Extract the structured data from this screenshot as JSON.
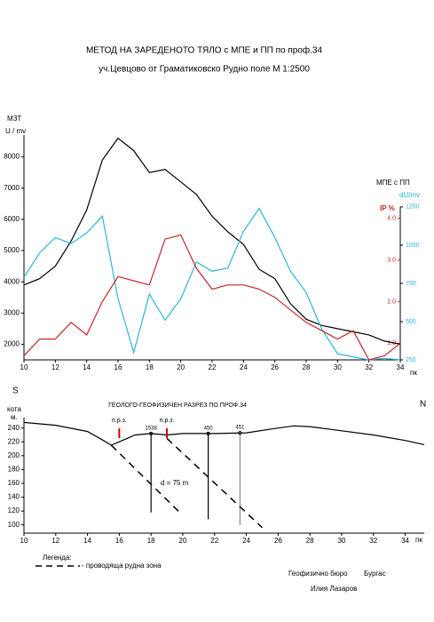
{
  "chart_data": [
    {
      "type": "line",
      "title": "МЕТОД НА ЗАРЕДЕНОТО ТЯЛО с МПЕ и ПП по проф.34",
      "subtitle": "уч.Цевцово от Граматиковско Рудно поле  М 1:2500",
      "y_label_top": "МЗТ",
      "y_label": "U / mv",
      "y2_group_label": "МПЕ с ПП",
      "y2_label": "dU/mv",
      "y3_label": "IP %",
      "x_label": "пк",
      "x": [
        10,
        11,
        12,
        13,
        14,
        15,
        16,
        17,
        18,
        19,
        20,
        21,
        22,
        23,
        24,
        25,
        26,
        27,
        28,
        29,
        30,
        31,
        32,
        33,
        34
      ],
      "xlim": [
        10,
        34
      ],
      "xticks": [
        10,
        12,
        14,
        16,
        18,
        20,
        22,
        24,
        26,
        28,
        30,
        32,
        34
      ],
      "ylim": [
        1500,
        8700
      ],
      "yticks": [
        2000,
        3000,
        4000,
        5000,
        6000,
        7000,
        8000
      ],
      "y2lim": [
        250,
        1720
      ],
      "y2ticks": [
        250,
        500,
        750,
        1000,
        1250
      ],
      "y3lim": [
        0.6,
        6
      ],
      "y3ticks": [
        {
          "value": 1,
          "label": "1.0"
        },
        {
          "value": 2,
          "label": "2.0"
        },
        {
          "value": 3,
          "label": "3.0"
        },
        {
          "value": 4,
          "label": "4.0"
        }
      ],
      "series": [
        {
          "color": "#000000",
          "values": [
            3900,
            4100,
            4500,
            5300,
            6300,
            7900,
            8600,
            8200,
            7500,
            7600,
            7200,
            6800,
            6100,
            5600,
            5200,
            4400,
            4100,
            3300,
            2800,
            2600,
            2500,
            2400,
            2300,
            2100,
            2000
          ]
        },
        {
          "color": "#29b6d6",
          "axis": "y2",
          "values": [
            790,
            950,
            1050,
            1010,
            1080,
            1190,
            650,
            300,
            680,
            510,
            650,
            890,
            830,
            850,
            1090,
            1240,
            1050,
            830,
            690,
            450,
            290,
            270,
            250,
            260,
            250
          ]
        },
        {
          "color": "#c0282a",
          "axis": "y3",
          "values": [
            0.7,
            1.1,
            1.1,
            1.5,
            1.2,
            2.0,
            2.6,
            2.5,
            2.4,
            3.5,
            3.6,
            2.8,
            2.3,
            2.4,
            2.4,
            2.3,
            2.1,
            1.8,
            1.5,
            1.3,
            1.1,
            1.3,
            0.6,
            0.7,
            1.0
          ]
        }
      ]
    },
    {
      "type": "line",
      "title": "ГЕОЛОГО-ГЕОФИЗИЧЕН РАЗРЕЗ  ПО ПРОФ.34",
      "left_label": "S",
      "right_label": "N",
      "y_label": "кота",
      "y_unit": "м.",
      "x_label": "пк",
      "xlim": [
        10,
        35.2
      ],
      "xticks": [
        10,
        12,
        14,
        16,
        18,
        20,
        22,
        24,
        26,
        28,
        30,
        32,
        34
      ],
      "ylim": [
        88,
        255
      ],
      "yticks": [
        100,
        120,
        140,
        160,
        180,
        200,
        220,
        240
      ],
      "series": [
        {
          "color": "#000000",
          "x": [
            10,
            12,
            14,
            15,
            15.5,
            16,
            17,
            18,
            19,
            20,
            22,
            24,
            26,
            27,
            28,
            30,
            32,
            34,
            35.2
          ],
          "values": [
            248,
            244,
            235,
            222,
            215,
            220,
            230,
            232,
            230,
            232,
            232,
            233,
            240,
            243,
            242,
            236,
            230,
            222,
            216
          ]
        }
      ],
      "markers": [
        {
          "label": "п.р.з.",
          "x": 16
        },
        {
          "label": "п.р.з.",
          "x": 19
        }
      ],
      "boreholes": [
        {
          "label": "1538",
          "x": 18,
          "top": 232,
          "bottom": 118
        },
        {
          "label": "450",
          "x": 21.6,
          "top": 232,
          "bottom": 108
        },
        {
          "label": "451",
          "x": 23.6,
          "top": 233,
          "bottom": 100
        }
      ],
      "ore_zones": [
        {
          "x": [
            15.5,
            19.8
          ],
          "y": [
            215,
            118
          ]
        },
        {
          "x": [
            19,
            25
          ],
          "y": [
            225,
            96
          ]
        }
      ],
      "annotation": "d = 75 m"
    }
  ],
  "legend": {
    "title": "Легенда:",
    "item": "- проводяща рудна зона"
  },
  "footer": {
    "office": "Геофизично бюро",
    "city": "Бургас",
    "author": "Илия Лазаров"
  }
}
